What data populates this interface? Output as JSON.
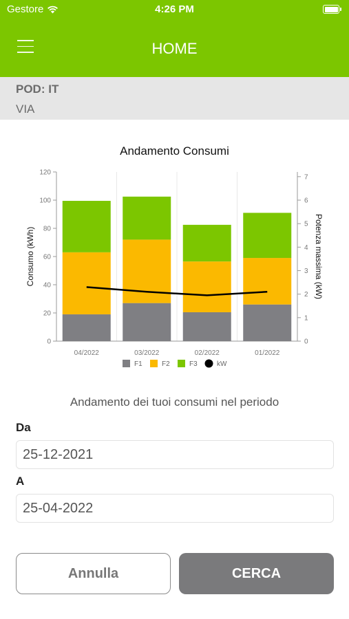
{
  "status_bar": {
    "carrier": "Gestore",
    "time": "4:26 PM",
    "wifi_icon": "wifi-icon",
    "battery_icon": "battery-icon"
  },
  "header": {
    "title": "HOME",
    "menu_icon": "hamburger-menu-icon"
  },
  "pod": {
    "label": "POD: IT",
    "address": "VIA"
  },
  "chart_data": {
    "type": "bar",
    "stacked": true,
    "title": "Andamento Consumi",
    "categories": [
      "04/2022",
      "03/2022",
      "02/2022",
      "01/2022"
    ],
    "series": [
      {
        "name": "F1",
        "color": "#7f7f83",
        "values": [
          19,
          27,
          20.5,
          26
        ]
      },
      {
        "name": "F2",
        "color": "#fbb900",
        "values": [
          44,
          45,
          36,
          33
        ]
      },
      {
        "name": "F3",
        "color": "#7cc600",
        "values": [
          36.5,
          30.5,
          26,
          32
        ]
      }
    ],
    "line_series": {
      "name": "kW",
      "color": "#000000",
      "axis": "right",
      "values": [
        2.3,
        2.1,
        1.95,
        2.1
      ]
    },
    "ylabel": "Consumo (kWh)",
    "ylabel_right": "Potenza massima (kW)",
    "ylim": [
      0,
      120
    ],
    "yticks": [
      "0",
      "20",
      "40",
      "60",
      "80",
      "100",
      "120"
    ],
    "ylim_right": [
      0,
      7.2
    ],
    "yticks_right": [
      "0",
      "1",
      "2",
      "3",
      "4",
      "5",
      "6",
      "7"
    ],
    "legend_position": "bottom",
    "grid": true
  },
  "period": {
    "caption": "Andamento dei tuoi consumi nel periodo",
    "from_label": "Da",
    "from_value": "25-12-2021",
    "to_label": "A",
    "to_value": "25-04-2022"
  },
  "buttons": {
    "cancel_label": "Annulla",
    "search_label": "CERCA"
  }
}
